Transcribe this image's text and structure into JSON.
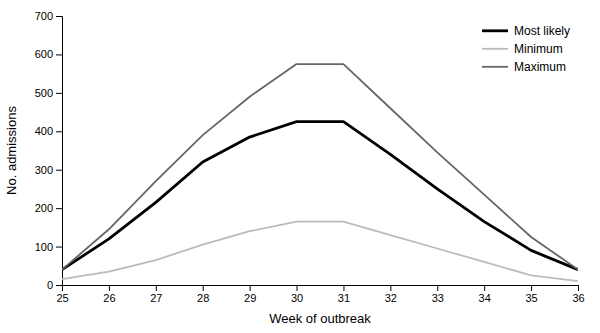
{
  "chart_data": {
    "type": "line",
    "x": [
      25,
      26,
      27,
      28,
      29,
      30,
      31,
      32,
      33,
      34,
      35,
      36
    ],
    "series": [
      {
        "name": "Most likely",
        "color": "#000000",
        "values": [
          40,
          120,
          215,
          320,
          385,
          425,
          425,
          340,
          250,
          165,
          90,
          40
        ]
      },
      {
        "name": "Minimum",
        "color": "#bbbbbb",
        "values": [
          15,
          35,
          65,
          105,
          140,
          165,
          165,
          130,
          95,
          60,
          25,
          10
        ]
      },
      {
        "name": "Maximum",
        "color": "#666666",
        "values": [
          40,
          145,
          270,
          390,
          490,
          575,
          575,
          460,
          345,
          235,
          125,
          40
        ]
      }
    ],
    "xlabel": "Week of outbreak",
    "ylabel": "No. admissions",
    "xlim": [
      25,
      36
    ],
    "xticks": [
      25,
      26,
      27,
      28,
      29,
      30,
      31,
      32,
      33,
      34,
      35,
      36
    ],
    "ylim": [
      0,
      700
    ],
    "yticks": [
      0,
      100,
      200,
      300,
      400,
      500,
      600,
      700
    ],
    "legend": "upper right",
    "grid": false
  }
}
